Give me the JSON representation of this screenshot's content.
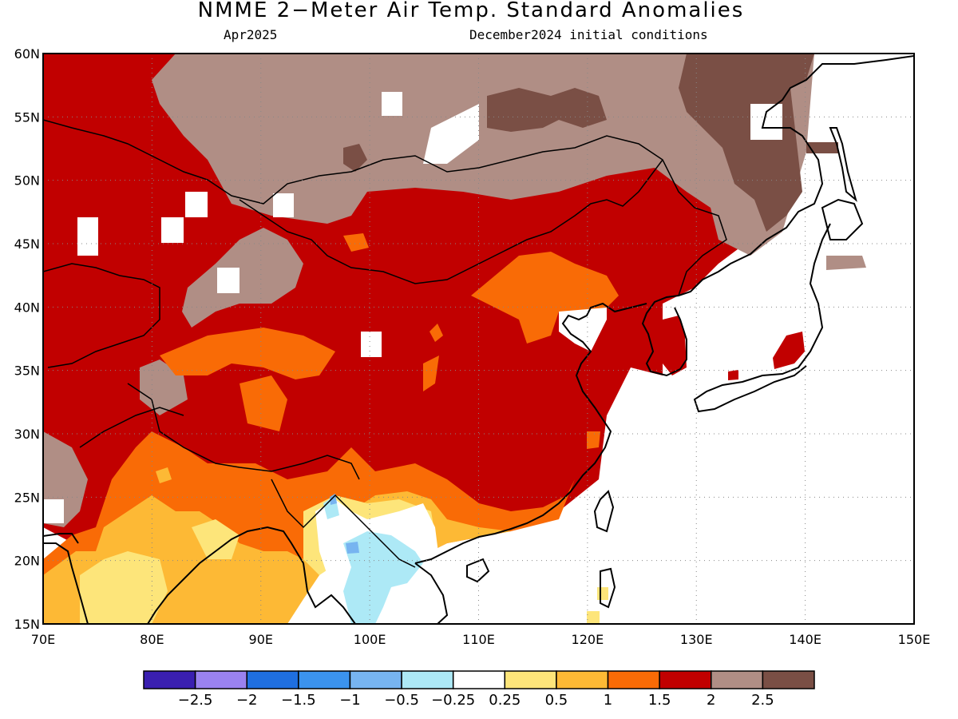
{
  "title": "NMME 2−Meter Air Temp. Standard Anomalies",
  "valid_month": "Apr2025",
  "initial_conditions": "December2024 initial conditions",
  "map": {
    "lon_range": [
      70,
      150
    ],
    "lat_range": [
      15,
      60
    ],
    "lon_ticks": [
      "70E",
      "80E",
      "90E",
      "100E",
      "110E",
      "120E",
      "130E",
      "140E",
      "150E"
    ],
    "lat_ticks": [
      "15N",
      "20N",
      "25N",
      "30N",
      "35N",
      "40N",
      "45N",
      "50N",
      "55N",
      "60N"
    ],
    "grid": "dotted"
  },
  "colorbar": {
    "colors": [
      "#3a1fb0",
      "#9a82ef",
      "#1f6fe0",
      "#3b93ee",
      "#77b4f0",
      "#ade9f6",
      "#ffffff",
      "#fde57a",
      "#fdb935",
      "#f96b06",
      "#c10000",
      "#b08e85",
      "#7a4f45"
    ],
    "labels": [
      "−2.5",
      "−2",
      "−1.5",
      "−1",
      "−0.5",
      "−0.25",
      "0.25",
      "0.5",
      "1",
      "1.5",
      "2",
      "2.5"
    ]
  },
  "legend_colors": {
    "land_ocean_blank": "#ffffff",
    "coastline": "#000000"
  }
}
